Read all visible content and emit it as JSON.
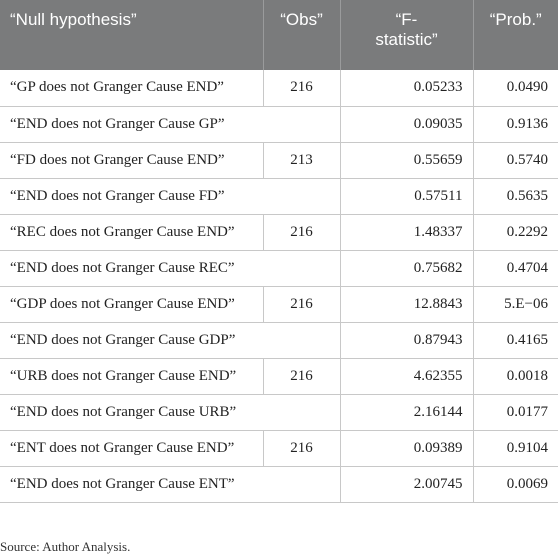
{
  "table": {
    "headers": [
      "“Null hypothesis”",
      "“Obs”",
      "“F-\nstatistic”",
      "“Prob.”"
    ],
    "header_f_line1": "“F-",
    "header_f_line2": "statistic”",
    "groups": [
      {
        "obs": "216",
        "rows": [
          {
            "hypothesis": "“GP does not Granger Cause END”",
            "f": "0.05233",
            "prob": "0.0490"
          },
          {
            "hypothesis": "“END does not Granger Cause GP”",
            "f": "0.09035",
            "prob": "0.9136"
          }
        ]
      },
      {
        "obs": "213",
        "rows": [
          {
            "hypothesis": "“FD does not Granger Cause END”",
            "f": "0.55659",
            "prob": "0.5740"
          },
          {
            "hypothesis": "“END does not Granger Cause FD”",
            "f": "0.57511",
            "prob": "0.5635"
          }
        ]
      },
      {
        "obs": "216",
        "rows": [
          {
            "hypothesis": "“REC does not Granger Cause END”",
            "f": "1.48337",
            "prob": "0.2292"
          },
          {
            "hypothesis": "“END does not Granger Cause REC”",
            "f": "0.75682",
            "prob": "0.4704"
          }
        ]
      },
      {
        "obs": "216",
        "rows": [
          {
            "hypothesis": "“GDP does not Granger Cause END”",
            "f": "12.8843",
            "prob": "5.E−06"
          },
          {
            "hypothesis": "“END does not Granger Cause GDP”",
            "f": "0.87943",
            "prob": "0.4165"
          }
        ]
      },
      {
        "obs": "216",
        "rows": [
          {
            "hypothesis": "“URB does not Granger Cause END”",
            "f": "4.62355",
            "prob": "0.0018"
          },
          {
            "hypothesis": "“END does not Granger Cause URB”",
            "f": "2.16144",
            "prob": "0.0177"
          }
        ]
      },
      {
        "obs": "216",
        "rows": [
          {
            "hypothesis": "“ENT does not Granger Cause END”",
            "f": "0.09389",
            "prob": "0.9104"
          },
          {
            "hypothesis": "“END does not Granger Cause ENT”",
            "f": "2.00745",
            "prob": "0.0069"
          }
        ]
      }
    ]
  },
  "source": "Source: Author Analysis."
}
